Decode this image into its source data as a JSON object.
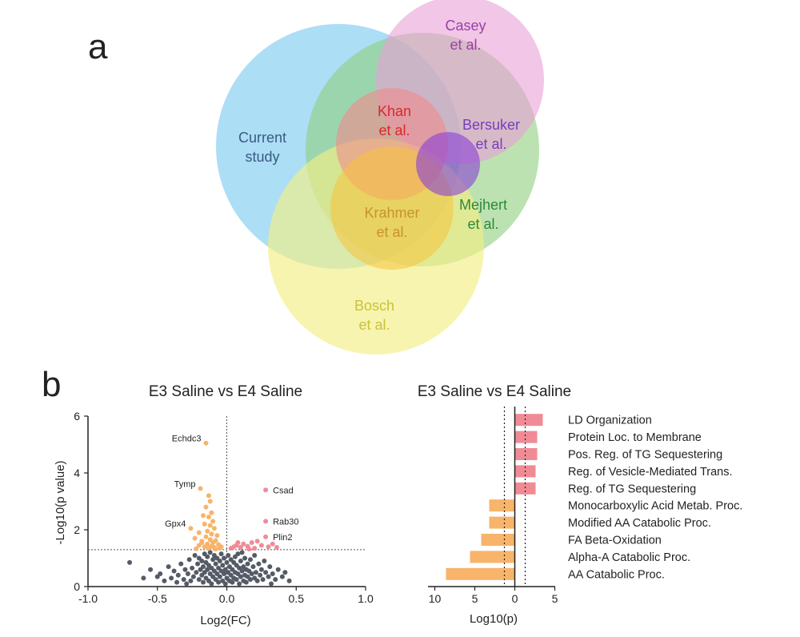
{
  "panel_a": {
    "letter": "a",
    "sets": [
      {
        "key": "current",
        "lines": [
          "Current",
          "study"
        ],
        "fill": "#74c8ee",
        "text_color": "#3a5a86"
      },
      {
        "key": "mejhert",
        "lines": [
          "Mejhert",
          "et al."
        ],
        "fill": "#8fcf7e",
        "text_color": "#2e8a38"
      },
      {
        "key": "casey",
        "lines": [
          "Casey",
          "et al."
        ],
        "fill": "#e7a0d6",
        "text_color": "#9b3fa8"
      },
      {
        "key": "bosch",
        "lines": [
          "Bosch",
          "et al."
        ],
        "fill": "#f3ee84",
        "text_color": "#c9c23a"
      },
      {
        "key": "khan",
        "lines": [
          "Khan",
          "et al."
        ],
        "fill": "#f28a8a",
        "text_color": "#d42a2a"
      },
      {
        "key": "krahmer",
        "lines": [
          "Krahmer",
          "et al."
        ],
        "fill": "#f7c23a",
        "text_color": "#c7922f"
      },
      {
        "key": "bersuker",
        "lines": [
          "Bersuker",
          "et al."
        ],
        "fill": "#8a3fd6",
        "text_color": "#7a3cbf"
      }
    ]
  },
  "panel_b": {
    "letter": "b"
  },
  "chart_data": [
    {
      "type": "scatter",
      "title": "E3 Saline vs E4 Saline",
      "xlabel": "Log2(FC)",
      "ylabel": "-Log10(p value)",
      "xlim": [
        -1.0,
        1.0
      ],
      "ylim": [
        0,
        6
      ],
      "xticks": [
        "-1.0",
        "-0.5",
        "0.0",
        "0.5",
        "1.0"
      ],
      "yticks": [
        "0",
        "2",
        "4",
        "6"
      ],
      "threshold_y": 1.3,
      "threshold_x": 0.0,
      "colors": {
        "down": "#f7b46a",
        "up": "#f08b96",
        "ns": "#555b66"
      },
      "labeled_points": [
        {
          "gene": "Echdc3",
          "x": -0.15,
          "y": 5.05,
          "group": "down"
        },
        {
          "gene": "Tymp",
          "x": -0.19,
          "y": 3.45,
          "group": "down"
        },
        {
          "gene": "Gpx4",
          "x": -0.26,
          "y": 2.05,
          "group": "down"
        },
        {
          "gene": "Csad",
          "x": 0.28,
          "y": 3.4,
          "group": "up"
        },
        {
          "gene": "Rab30",
          "x": 0.28,
          "y": 2.3,
          "group": "up"
        },
        {
          "gene": "Plin2",
          "x": 0.28,
          "y": 1.75,
          "group": "up"
        }
      ],
      "points_down": [
        [
          -0.13,
          3.2
        ],
        [
          -0.12,
          3.0
        ],
        [
          -0.15,
          2.8
        ],
        [
          -0.11,
          2.6
        ],
        [
          -0.17,
          2.5
        ],
        [
          -0.13,
          2.45
        ],
        [
          -0.1,
          2.3
        ],
        [
          -0.16,
          2.2
        ],
        [
          -0.12,
          2.15
        ],
        [
          -0.09,
          2.05
        ],
        [
          -0.14,
          1.95
        ],
        [
          -0.2,
          1.9
        ],
        [
          -0.11,
          1.85
        ],
        [
          -0.07,
          1.8
        ],
        [
          -0.15,
          1.75
        ],
        [
          -0.23,
          1.7
        ],
        [
          -0.12,
          1.65
        ],
        [
          -0.08,
          1.62
        ],
        [
          -0.18,
          1.6
        ],
        [
          -0.1,
          1.55
        ],
        [
          -0.14,
          1.5
        ],
        [
          -0.06,
          1.48
        ],
        [
          -0.2,
          1.45
        ],
        [
          -0.11,
          1.42
        ],
        [
          -0.16,
          1.4
        ],
        [
          -0.09,
          1.38
        ],
        [
          -0.13,
          1.35
        ],
        [
          -0.05,
          1.35
        ],
        [
          -0.22,
          1.33
        ],
        [
          -0.08,
          1.32
        ],
        [
          -0.18,
          1.55
        ],
        [
          -0.04,
          1.4
        ]
      ],
      "points_up": [
        [
          0.03,
          1.35
        ],
        [
          0.05,
          1.4
        ],
        [
          0.07,
          1.45
        ],
        [
          0.1,
          1.38
        ],
        [
          0.12,
          1.5
        ],
        [
          0.15,
          1.42
        ],
        [
          0.18,
          1.55
        ],
        [
          0.2,
          1.35
        ],
        [
          0.22,
          1.6
        ],
        [
          0.25,
          1.45
        ],
        [
          0.3,
          1.4
        ],
        [
          0.33,
          1.5
        ],
        [
          0.36,
          1.38
        ],
        [
          0.08,
          1.55
        ],
        [
          0.16,
          1.32
        ]
      ],
      "points_ns": [
        [
          -0.7,
          0.85
        ],
        [
          -0.55,
          0.6
        ],
        [
          -0.48,
          0.45
        ],
        [
          -0.42,
          0.7
        ],
        [
          -0.4,
          0.3
        ],
        [
          -0.38,
          0.55
        ],
        [
          -0.35,
          0.4
        ],
        [
          -0.33,
          0.8
        ],
        [
          -0.31,
          0.25
        ],
        [
          -0.3,
          0.6
        ],
        [
          -0.28,
          0.45
        ],
        [
          -0.27,
          0.95
        ],
        [
          -0.26,
          0.2
        ],
        [
          -0.25,
          0.65
        ],
        [
          -0.24,
          0.35
        ],
        [
          -0.23,
          1.1
        ],
        [
          -0.22,
          0.5
        ],
        [
          -0.21,
          0.8
        ],
        [
          -0.2,
          0.25
        ],
        [
          -0.2,
          1.0
        ],
        [
          -0.19,
          0.6
        ],
        [
          -0.18,
          0.4
        ],
        [
          -0.18,
          0.9
        ],
        [
          -0.17,
          0.15
        ],
        [
          -0.17,
          0.7
        ],
        [
          -0.16,
          1.15
        ],
        [
          -0.16,
          0.5
        ],
        [
          -0.15,
          0.3
        ],
        [
          -0.15,
          0.85
        ],
        [
          -0.14,
          0.6
        ],
        [
          -0.14,
          1.05
        ],
        [
          -0.13,
          0.2
        ],
        [
          -0.13,
          0.75
        ],
        [
          -0.12,
          0.45
        ],
        [
          -0.12,
          1.2
        ],
        [
          -0.11,
          0.1
        ],
        [
          -0.11,
          0.65
        ],
        [
          -0.1,
          0.95
        ],
        [
          -0.1,
          0.35
        ],
        [
          -0.09,
          0.55
        ],
        [
          -0.09,
          1.1
        ],
        [
          -0.08,
          0.25
        ],
        [
          -0.08,
          0.8
        ],
        [
          -0.07,
          0.45
        ],
        [
          -0.07,
          1.0
        ],
        [
          -0.06,
          0.15
        ],
        [
          -0.06,
          0.65
        ],
        [
          -0.05,
          0.9
        ],
        [
          -0.05,
          0.35
        ],
        [
          -0.04,
          0.55
        ],
        [
          -0.04,
          1.15
        ],
        [
          -0.03,
          0.2
        ],
        [
          -0.03,
          0.75
        ],
        [
          -0.02,
          0.45
        ],
        [
          -0.02,
          1.0
        ],
        [
          -0.01,
          0.1
        ],
        [
          -0.01,
          0.6
        ],
        [
          0.0,
          0.3
        ],
        [
          0.0,
          0.85
        ],
        [
          0.01,
          0.5
        ],
        [
          0.01,
          1.1
        ],
        [
          0.02,
          0.2
        ],
        [
          0.02,
          0.7
        ],
        [
          0.03,
          0.4
        ],
        [
          0.03,
          0.95
        ],
        [
          0.04,
          0.15
        ],
        [
          0.04,
          0.6
        ],
        [
          0.05,
          0.85
        ],
        [
          0.05,
          0.3
        ],
        [
          0.06,
          0.5
        ],
        [
          0.06,
          1.05
        ],
        [
          0.07,
          0.25
        ],
        [
          0.07,
          0.75
        ],
        [
          0.08,
          0.45
        ],
        [
          0.08,
          1.15
        ],
        [
          0.09,
          0.1
        ],
        [
          0.09,
          0.65
        ],
        [
          0.1,
          0.35
        ],
        [
          0.1,
          0.9
        ],
        [
          0.11,
          0.55
        ],
        [
          0.11,
          1.2
        ],
        [
          0.12,
          0.2
        ],
        [
          0.12,
          0.7
        ],
        [
          0.13,
          0.4
        ],
        [
          0.13,
          1.0
        ],
        [
          0.14,
          0.6
        ],
        [
          0.14,
          0.15
        ],
        [
          0.15,
          0.8
        ],
        [
          0.15,
          0.35
        ],
        [
          0.16,
          0.55
        ],
        [
          0.17,
          0.25
        ],
        [
          0.17,
          0.95
        ],
        [
          0.18,
          0.45
        ],
        [
          0.19,
          0.7
        ],
        [
          0.2,
          0.3
        ],
        [
          0.2,
          1.1
        ],
        [
          0.21,
          0.5
        ],
        [
          0.22,
          0.2
        ],
        [
          0.23,
          0.8
        ],
        [
          0.24,
          0.4
        ],
        [
          0.25,
          0.6
        ],
        [
          0.26,
          0.25
        ],
        [
          0.27,
          0.9
        ],
        [
          0.28,
          0.5
        ],
        [
          0.3,
          0.35
        ],
        [
          0.31,
          0.7
        ],
        [
          0.33,
          0.45
        ],
        [
          0.35,
          0.25
        ],
        [
          0.37,
          0.6
        ],
        [
          0.4,
          0.35
        ],
        [
          0.42,
          0.5
        ],
        [
          -0.45,
          0.2
        ],
        [
          -0.36,
          0.15
        ],
        [
          -0.29,
          0.1
        ],
        [
          -0.5,
          0.35
        ],
        [
          0.45,
          0.2
        ],
        [
          -0.6,
          0.3
        ],
        [
          0.32,
          0.1
        ]
      ]
    },
    {
      "type": "bar",
      "title": "E3 Saline vs E4 Saline",
      "xlabel": "Log10(p)",
      "orientation": "horizontal",
      "xlim": [
        10,
        -5
      ],
      "xticks": [
        "10",
        "5",
        "0",
        "5"
      ],
      "threshold_lines": [
        1.3,
        -1.3
      ],
      "categories": [
        "LD Organization",
        "Protein Loc. to Membrane",
        "Pos. Reg. of TG Sequestering",
        "Reg. of Vesicle-Mediated Trans.",
        "Reg. of TG Sequestering",
        "Monocarboxylic Acid Metab. Proc.",
        "Modified AA Catabolic Proc.",
        "FA Beta-Oxidation",
        "Alpha-A Catabolic Proc.",
        "AA Catabolic Proc."
      ],
      "values": [
        3.5,
        2.8,
        2.8,
        2.6,
        2.6,
        3.2,
        3.2,
        4.2,
        5.6,
        8.6
      ],
      "direction": [
        "up",
        "up",
        "up",
        "up",
        "up",
        "down",
        "down",
        "down",
        "down",
        "down"
      ],
      "colors": {
        "up": "#f08b96",
        "down": "#f7b46a"
      }
    }
  ]
}
